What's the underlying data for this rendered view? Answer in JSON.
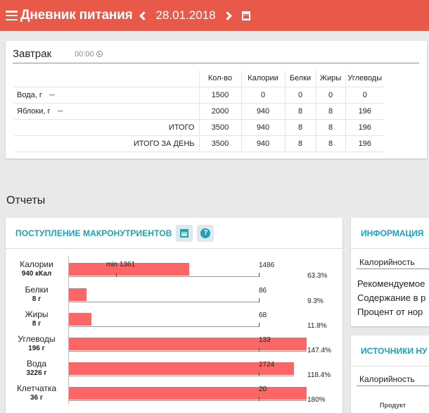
{
  "header": {
    "title": "Дневник питания",
    "date": "28.01.2018"
  },
  "meal": {
    "name": "Завтрак",
    "time": "00:00",
    "columns": [
      "Кол-во",
      "Калории",
      "Белки",
      "Жиры",
      "Углеводы"
    ],
    "rows": [
      {
        "name": "Вода, г",
        "values": [
          "1500",
          "0",
          "0",
          "0",
          "0"
        ]
      },
      {
        "name": "Яблоки, г",
        "values": [
          "2000",
          "940",
          "8",
          "8",
          "196"
        ]
      }
    ],
    "total": {
      "label": "ИТОГО",
      "values": [
        "3500",
        "940",
        "8",
        "8",
        "196"
      ]
    },
    "day_total": {
      "label": "ИТОГО ЗА ДЕНЬ",
      "values": [
        "3500",
        "940",
        "8",
        "8",
        "196"
      ]
    }
  },
  "reports": {
    "title": "Отчеты"
  },
  "macro": {
    "title": "ПОСТУПЛЕНИЕ МАКРОНУТРИЕНТОВ",
    "help_glyph": "?"
  },
  "chart_data": {
    "type": "bar",
    "title": "ПОСТУПЛЕНИЕ МАКРОНУТРИЕНТОВ",
    "colors": {
      "bar": "#fd6666",
      "accent": "#1ba3b7",
      "header": "#e8594a"
    },
    "rows": [
      {
        "label": "Калории",
        "amount": "940 кКал",
        "value": 940,
        "norm": 1486,
        "min_label": "min 1361",
        "min": 1361,
        "norm_label": "1486",
        "pct": "63.3%"
      },
      {
        "label": "Белки",
        "amount": "8 г",
        "value": 8,
        "norm": 86,
        "norm_label": "86",
        "pct": "9.3%"
      },
      {
        "label": "Жиры",
        "amount": "8 г",
        "value": 8,
        "norm": 68,
        "norm_label": "68",
        "pct": "11.8%"
      },
      {
        "label": "Углеводы",
        "amount": "196 г",
        "value": 196,
        "norm": 133,
        "norm_label": "133",
        "pct": "147.4%"
      },
      {
        "label": "Вода",
        "amount": "3226 г",
        "value": 3226,
        "norm": 2724,
        "norm_label": "2724",
        "pct": "118.4%"
      },
      {
        "label": "Клетчатка",
        "amount": "36 г",
        "value": 36,
        "norm": 20,
        "norm_label": "20",
        "pct": "180%"
      }
    ]
  },
  "info": {
    "title": "ИНФОРМАЦИЯ",
    "sub": "Калорийность",
    "lines": [
      "Рекомендуемое",
      "Содержание в р",
      "Процент от нор"
    ]
  },
  "sources": {
    "title": "ИСТОЧНИКИ НУ",
    "sub": "Калорийность",
    "product_label": "Продукт"
  }
}
